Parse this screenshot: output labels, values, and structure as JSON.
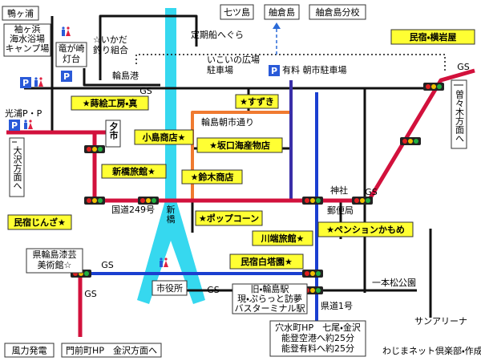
{
  "labels": {
    "kamogaura": "鴨ヶ浦",
    "nanatsujima": "七ツ島",
    "hegurajima": "舳倉島",
    "hegura_school": "舳倉島分校",
    "ferry": "定期船へぐら",
    "ikada": [
      "☆いかだ",
      "釣り組合"
    ],
    "sodegahama": [
      "袖ヶ浜",
      "海水浴場",
      "キャンプ場"
    ],
    "lighthouse": [
      "竜が崎",
      "灯台"
    ],
    "wajima_port": "輪島港",
    "ikoi": [
      "いこいの広場",
      "駐車場"
    ],
    "asaichi_parking": "有料 朝市駐車場",
    "yokoiwaya": "民宿・横岩屋",
    "mitsuura": "光浦P・P",
    "makie": "★蒔絵工房・真",
    "suzuki": "★すずき",
    "asaichi_street": "輪島朝市通り",
    "yuichi": "夕市",
    "kojima": "小島商店★",
    "sakaguchi": "★坂口海産物店",
    "shinbashi_ryokan": "新橋旅館★",
    "suzuki_shoten": "★鈴木商店",
    "osawa": "大沢方面へ",
    "sosogi": "曽々木方面へ",
    "shrine": "神社",
    "route249": "国道249号",
    "shinbashi": [
      "新",
      "橋"
    ],
    "post_office": "郵便局",
    "jinza": "民宿じんざ★",
    "popcorn": "★ポップコーン",
    "kawabata": "川端旅館★",
    "kamome": "★ペンションかもめ",
    "museum": [
      "県輪島漆芸",
      "美術館☆"
    ],
    "hakutoen": "民宿白塔園★",
    "ipponmatsu": "一本松公園",
    "city_hall": "市役所",
    "station": [
      "旧・輪島駅",
      "現・ぷらっと訪夢",
      "バスターミナル駅"
    ],
    "pref_road1": "県道1号",
    "sun_arena": "サンアリーナ",
    "anamizu": [
      "穴水町HP　七尾・金沢",
      "能登空港へ約25分",
      "能登有料へ約25分"
    ],
    "wind_power": "風力発電",
    "monzen": "門前町HP　金沢方面へ",
    "credit": "わじまネット倶楽部・作成"
  },
  "gs_labels": [
    "GS",
    "GS",
    "GS",
    "GS",
    "GS",
    "GS"
  ],
  "parking_icons": [
    "P",
    "P",
    "P",
    "P"
  ]
}
